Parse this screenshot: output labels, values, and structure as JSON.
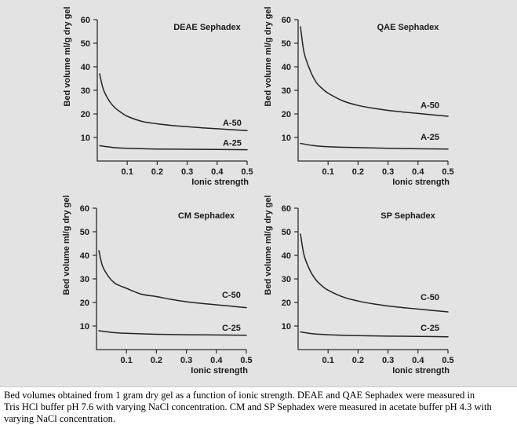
{
  "figure": {
    "bg_color": "#e3e3e3",
    "axis_color": "#2a2a2a",
    "curve_color": "#222222",
    "text_color": "#1a1a1a"
  },
  "caption": {
    "lines": [
      "Bed volumes obtained from 1 gram dry gel as a function of ionic strength. DEAE and QAE Sephadex were measured in",
      "Tris HCl buffer pH 7.6 with varying NaCl concentration. CM and SP Sephadex were measured in acetate buffer pH 4.3 with",
      "varying NaCl concentration."
    ]
  },
  "chart_data": [
    {
      "type": "line",
      "title": "DEAE Sephadex",
      "xlabel": "Ionic strength",
      "ylabel": "Bed volume ml/g dry gel",
      "xlim": [
        0,
        0.5
      ],
      "ylim": [
        0,
        60
      ],
      "xticks": [
        "0.1",
        "0.2",
        "0.3",
        "0.4",
        "0.5"
      ],
      "yticks": [
        "10",
        "20",
        "30",
        "40",
        "50",
        "60"
      ],
      "grid": false,
      "series": [
        {
          "name": "A-50",
          "points": [
            [
              0.008,
              37
            ],
            [
              0.02,
              30.5
            ],
            [
              0.04,
              25.5
            ],
            [
              0.06,
              22.5
            ],
            [
              0.08,
              20.6
            ],
            [
              0.1,
              19
            ],
            [
              0.15,
              16.8
            ],
            [
              0.2,
              15.8
            ],
            [
              0.25,
              15.1
            ],
            [
              0.3,
              14.6
            ],
            [
              0.35,
              14.1
            ],
            [
              0.4,
              13.7
            ],
            [
              0.45,
              13.3
            ],
            [
              0.5,
              12.9
            ]
          ],
          "label_pos": [
            0.45,
            15
          ]
        },
        {
          "name": "A-25",
          "points": [
            [
              0.008,
              6.5
            ],
            [
              0.05,
              5.8
            ],
            [
              0.1,
              5.4
            ],
            [
              0.2,
              5.1
            ],
            [
              0.3,
              5.0
            ],
            [
              0.4,
              4.9
            ],
            [
              0.5,
              4.8
            ]
          ],
          "label_pos": [
            0.45,
            6.5
          ]
        }
      ]
    },
    {
      "type": "line",
      "title": "QAE Sephadex",
      "xlabel": "Ionic strength",
      "ylabel": "Bed volume ml/g dry gel",
      "xlim": [
        0,
        0.5
      ],
      "ylim": [
        0,
        60
      ],
      "xticks": [
        "0.1",
        "0.2",
        "0.3",
        "0.4",
        "0.5"
      ],
      "yticks": [
        "10",
        "20",
        "30",
        "40",
        "50",
        "60"
      ],
      "grid": false,
      "series": [
        {
          "name": "A-50",
          "points": [
            [
              0.008,
              57
            ],
            [
              0.02,
              46
            ],
            [
              0.04,
              38.5
            ],
            [
              0.06,
              33.5
            ],
            [
              0.08,
              30.8
            ],
            [
              0.1,
              28.8
            ],
            [
              0.15,
              25.5
            ],
            [
              0.2,
              23.6
            ],
            [
              0.25,
              22.4
            ],
            [
              0.3,
              21.5
            ],
            [
              0.35,
              20.8
            ],
            [
              0.4,
              20.2
            ],
            [
              0.45,
              19.6
            ],
            [
              0.5,
              19
            ]
          ],
          "label_pos": [
            0.44,
            22.5
          ]
        },
        {
          "name": "A-25",
          "points": [
            [
              0.008,
              7.5
            ],
            [
              0.05,
              6.6
            ],
            [
              0.1,
              6.1
            ],
            [
              0.2,
              5.7
            ],
            [
              0.3,
              5.4
            ],
            [
              0.4,
              5.2
            ],
            [
              0.5,
              5.1
            ]
          ],
          "label_pos": [
            0.44,
            9
          ]
        }
      ]
    },
    {
      "type": "line",
      "title": "CM Sephadex",
      "xlabel": "Ionic strength",
      "ylabel": "Bed volume ml/g dry gel",
      "xlim": [
        0,
        0.5
      ],
      "ylim": [
        0,
        60
      ],
      "xticks": [
        "0.1",
        "0.2",
        "0.3",
        "0.4",
        "0.5"
      ],
      "yticks": [
        "10",
        "20",
        "30",
        "40",
        "50",
        "60"
      ],
      "grid": false,
      "series": [
        {
          "name": "C-50",
          "points": [
            [
              0.008,
              42
            ],
            [
              0.02,
              35.5
            ],
            [
              0.04,
              31
            ],
            [
              0.06,
              28.3
            ],
            [
              0.08,
              27
            ],
            [
              0.1,
              26
            ],
            [
              0.15,
              23.5
            ],
            [
              0.2,
              22.5
            ],
            [
              0.25,
              21.3
            ],
            [
              0.3,
              20.3
            ],
            [
              0.35,
              19.6
            ],
            [
              0.4,
              19
            ],
            [
              0.45,
              18.4
            ],
            [
              0.5,
              17.8
            ]
          ],
          "label_pos": [
            0.45,
            22
          ]
        },
        {
          "name": "C-25",
          "points": [
            [
              0.008,
              8
            ],
            [
              0.05,
              7.3
            ],
            [
              0.1,
              6.9
            ],
            [
              0.2,
              6.5
            ],
            [
              0.3,
              6.3
            ],
            [
              0.4,
              6.2
            ],
            [
              0.5,
              6.1
            ]
          ],
          "label_pos": [
            0.45,
            8
          ]
        }
      ]
    },
    {
      "type": "line",
      "title": "SP Sephadex",
      "xlabel": "Ionic strength",
      "ylabel": "Bed volume ml/g dry gel",
      "xlim": [
        0,
        0.5
      ],
      "ylim": [
        0,
        60
      ],
      "xticks": [
        "0.1",
        "0.2",
        "0.3",
        "0.4",
        "0.5"
      ],
      "yticks": [
        "10",
        "20",
        "30",
        "40",
        "50",
        "60"
      ],
      "grid": false,
      "series": [
        {
          "name": "C-50",
          "points": [
            [
              0.008,
              49
            ],
            [
              0.02,
              40
            ],
            [
              0.04,
              33.5
            ],
            [
              0.06,
              29.5
            ],
            [
              0.08,
              27
            ],
            [
              0.1,
              25.2
            ],
            [
              0.15,
              22.3
            ],
            [
              0.2,
              20.6
            ],
            [
              0.25,
              19.4
            ],
            [
              0.3,
              18.5
            ],
            [
              0.35,
              17.8
            ],
            [
              0.4,
              17.2
            ],
            [
              0.45,
              16.6
            ],
            [
              0.5,
              16
            ]
          ],
          "label_pos": [
            0.44,
            21
          ]
        },
        {
          "name": "C-25",
          "points": [
            [
              0.008,
              7.5
            ],
            [
              0.05,
              6.7
            ],
            [
              0.1,
              6.3
            ],
            [
              0.2,
              5.9
            ],
            [
              0.3,
              5.7
            ],
            [
              0.4,
              5.6
            ],
            [
              0.5,
              5.4
            ]
          ],
          "label_pos": [
            0.44,
            8
          ]
        }
      ]
    }
  ]
}
